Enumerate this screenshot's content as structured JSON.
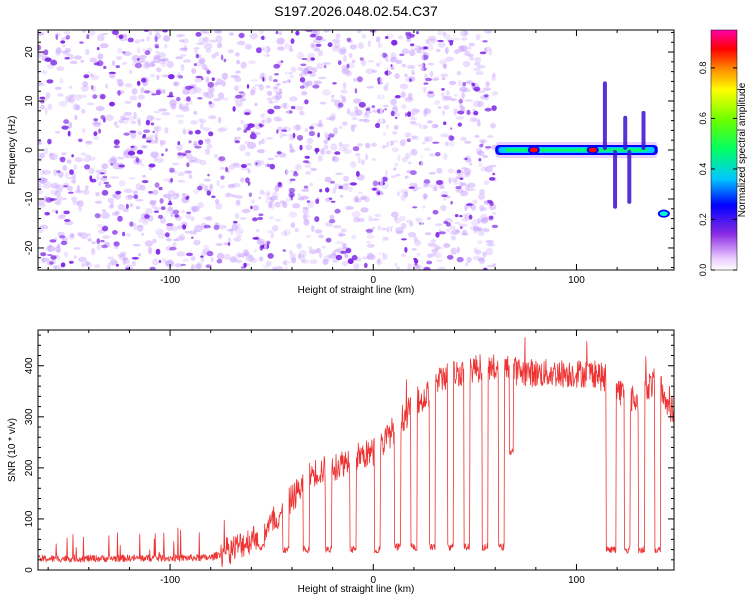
{
  "title": "S197.2026.048.02.54.C37",
  "colors": {
    "trace": "#ee3333",
    "speckle": "#7a1fe6",
    "axis": "#000000"
  },
  "chart_data": [
    {
      "type": "heatmap",
      "name": "spectrogram",
      "xlabel": "Height of straight line (km)",
      "ylabel": "Frequency (Hz)",
      "xlim": [
        -165,
        148
      ],
      "ylim": [
        -24.5,
        24.5
      ],
      "xticks": [
        -100,
        0,
        100
      ],
      "yticks": [
        -20,
        -10,
        0,
        10,
        20
      ],
      "noise_region_x": [
        -165,
        60
      ],
      "band": {
        "x": [
          60,
          140
        ],
        "freq": 0
      },
      "hotspots": [
        {
          "x": 79,
          "freq": 0,
          "amp": 1.0
        },
        {
          "x": 108,
          "freq": 0,
          "amp": 0.9
        },
        {
          "x": 143,
          "freq": -13,
          "amp": 0.45
        }
      ],
      "colorbar": {
        "label": "Normalized spectral amplitude",
        "ticks": [
          0.0,
          0.2,
          0.4,
          0.6,
          0.8
        ],
        "tick_labels": [
          "0.0",
          "0.2",
          "0.4",
          "0.6",
          "0.8"
        ],
        "range": [
          0,
          0.95
        ]
      }
    },
    {
      "type": "line",
      "name": "snr",
      "xlabel": "Height of straight line (km)",
      "ylabel": "SNR (10 * v/v)",
      "xlim": [
        -165,
        148
      ],
      "ylim": [
        0,
        470
      ],
      "xticks": [
        -100,
        0,
        100
      ],
      "yticks": [
        0,
        100,
        200,
        300,
        400
      ],
      "envelope": [
        [
          -165,
          22
        ],
        [
          -80,
          24
        ],
        [
          -70,
          40
        ],
        [
          -60,
          60
        ],
        [
          -50,
          90
        ],
        [
          -40,
          140
        ],
        [
          -30,
          190
        ],
        [
          -20,
          200
        ],
        [
          -10,
          220
        ],
        [
          0,
          230
        ],
        [
          5,
          250
        ],
        [
          10,
          275
        ],
        [
          15,
          300
        ],
        [
          20,
          320
        ],
        [
          25,
          335
        ],
        [
          30,
          360
        ],
        [
          35,
          380
        ],
        [
          40,
          385
        ],
        [
          50,
          395
        ],
        [
          60,
          395
        ],
        [
          70,
          390
        ],
        [
          80,
          385
        ],
        [
          90,
          385
        ],
        [
          100,
          385
        ],
        [
          110,
          385
        ],
        [
          118,
          360
        ],
        [
          125,
          340
        ],
        [
          130,
          330
        ],
        [
          135,
          360
        ],
        [
          140,
          370
        ],
        [
          145,
          320
        ],
        [
          148,
          310
        ]
      ],
      "dips": [
        {
          "x": -55,
          "w": 3,
          "depth": 45
        },
        {
          "x": -43,
          "w": 3,
          "depth": 40
        },
        {
          "x": -33,
          "w": 3,
          "depth": 40
        },
        {
          "x": -22,
          "w": 3,
          "depth": 40
        },
        {
          "x": -10,
          "w": 3,
          "depth": 40
        },
        {
          "x": 2,
          "w": 3,
          "depth": 40
        },
        {
          "x": 12,
          "w": 3,
          "depth": 45
        },
        {
          "x": 20,
          "w": 3,
          "depth": 45
        },
        {
          "x": 29,
          "w": 3,
          "depth": 45
        },
        {
          "x": 38,
          "w": 3,
          "depth": 45
        },
        {
          "x": 46,
          "w": 3,
          "depth": 45
        },
        {
          "x": 55,
          "w": 3,
          "depth": 45
        },
        {
          "x": 63,
          "w": 3,
          "depth": 45
        },
        {
          "x": 68,
          "w": 2,
          "depth": 230
        },
        {
          "x": 117,
          "w": 5,
          "depth": 40
        },
        {
          "x": 125,
          "w": 3,
          "depth": 40
        },
        {
          "x": 132,
          "w": 3,
          "depth": 40
        },
        {
          "x": 140,
          "w": 3,
          "depth": 40
        }
      ]
    }
  ]
}
